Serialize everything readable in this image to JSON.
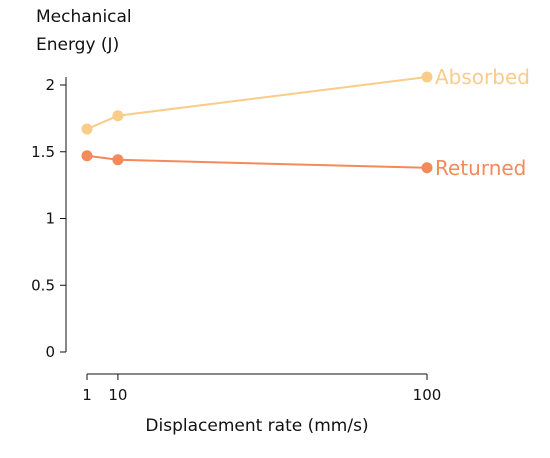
{
  "chart_data": {
    "type": "line",
    "xlabel": "Displacement rate (mm/s)",
    "ylabel_lines": [
      "Mechanical",
      "Energy (J)"
    ],
    "x_scale": "linear",
    "x_ticks": [
      {
        "value": 1,
        "label": "1"
      },
      {
        "value": 10,
        "label": "10"
      },
      {
        "value": 100,
        "label": "100"
      }
    ],
    "y_ticks": [
      {
        "value": 0,
        "label": "0"
      },
      {
        "value": 0.5,
        "label": "0.5"
      },
      {
        "value": 1,
        "label": "1"
      },
      {
        "value": 1.5,
        "label": "1.5"
      },
      {
        "value": 2,
        "label": "2"
      }
    ],
    "xlim": [
      1,
      100
    ],
    "ylim": [
      0,
      2
    ],
    "grid": false,
    "legend": "direct labels at line ends",
    "series": [
      {
        "name": "Absorbed",
        "color": "#F9CC8A",
        "x": [
          1,
          10,
          100
        ],
        "y": [
          1.67,
          1.77,
          2.06
        ]
      },
      {
        "name": "Returned",
        "color": "#F4895A",
        "x": [
          1,
          10,
          100
        ],
        "y": [
          1.47,
          1.44,
          1.38
        ]
      }
    ]
  }
}
